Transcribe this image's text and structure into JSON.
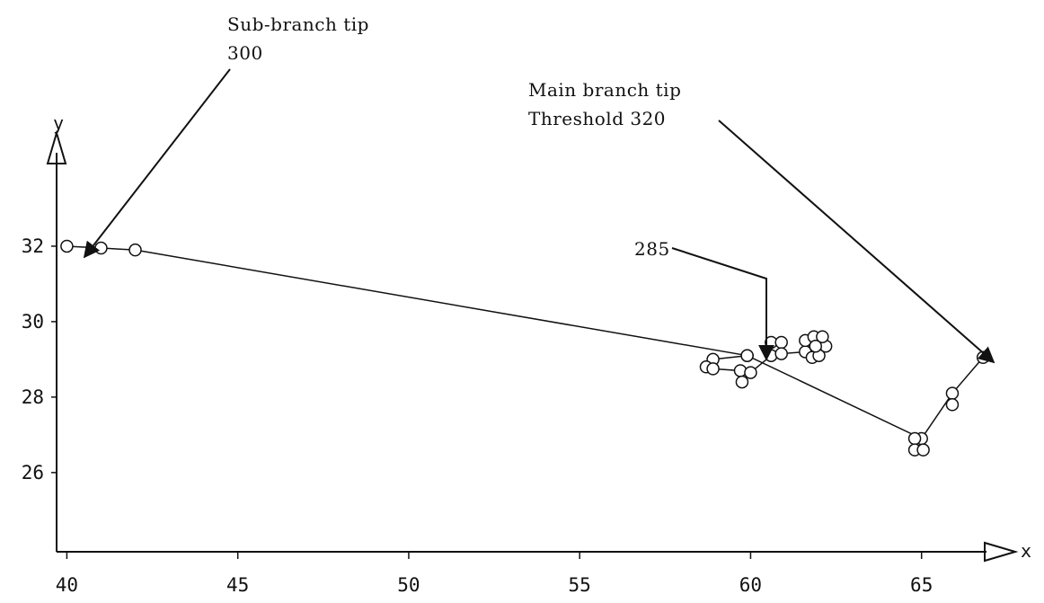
{
  "chart_data": {
    "type": "scatter",
    "title": "",
    "xlabel": "x",
    "ylabel": "y",
    "xlim": [
      39.7,
      66.9
    ],
    "ylim": [
      23.9,
      35
    ],
    "x_ticks": [
      40,
      45,
      50,
      55,
      60,
      65
    ],
    "y_ticks": [
      26,
      28,
      30,
      32
    ],
    "grid": false,
    "series": [
      {
        "connected": true,
        "points": [
          {
            "x": 40.0,
            "y": 32.0
          },
          {
            "x": 41.0,
            "y": 31.95
          },
          {
            "x": 42.0,
            "y": 31.9
          },
          {
            "x": 59.9,
            "y": 29.1
          },
          {
            "x": 65.0,
            "y": 26.9
          },
          {
            "x": 65.9,
            "y": 28.1
          },
          {
            "x": 66.8,
            "y": 29.05
          }
        ]
      },
      {
        "connected": true,
        "points": [
          {
            "x": 59.9,
            "y": 29.1
          },
          {
            "x": 58.9,
            "y": 29.0
          },
          {
            "x": 58.7,
            "y": 28.8
          },
          {
            "x": 58.9,
            "y": 28.75
          },
          {
            "x": 59.7,
            "y": 28.7
          },
          {
            "x": 59.75,
            "y": 28.4
          },
          {
            "x": 60.0,
            "y": 28.65
          },
          {
            "x": 60.6,
            "y": 29.1
          },
          {
            "x": 60.6,
            "y": 29.45
          },
          {
            "x": 60.9,
            "y": 29.45
          },
          {
            "x": 60.9,
            "y": 29.15
          },
          {
            "x": 61.6,
            "y": 29.2
          },
          {
            "x": 61.6,
            "y": 29.5
          },
          {
            "x": 61.85,
            "y": 29.6
          },
          {
            "x": 61.8,
            "y": 29.05
          },
          {
            "x": 62.0,
            "y": 29.1
          },
          {
            "x": 62.2,
            "y": 29.35
          },
          {
            "x": 62.1,
            "y": 29.6
          }
        ]
      },
      {
        "connected": false,
        "points": [
          {
            "x": 64.8,
            "y": 26.9
          },
          {
            "x": 64.8,
            "y": 26.6
          },
          {
            "x": 65.05,
            "y": 26.6
          },
          {
            "x": 65.9,
            "y": 27.8
          },
          {
            "x": 61.9,
            "y": 29.35
          }
        ]
      }
    ],
    "annotations": [
      {
        "lines": [
          "Sub-branch tip",
          "300"
        ],
        "target": {
          "x": 40.0,
          "y": 32.0
        }
      },
      {
        "lines": [
          "Main branch tip",
          "Threshold 320"
        ],
        "target": {
          "x": 66.8,
          "y": 29.05
        }
      },
      {
        "lines": [
          "285"
        ],
        "target": {
          "x": 59.9,
          "y": 29.1
        }
      }
    ]
  }
}
